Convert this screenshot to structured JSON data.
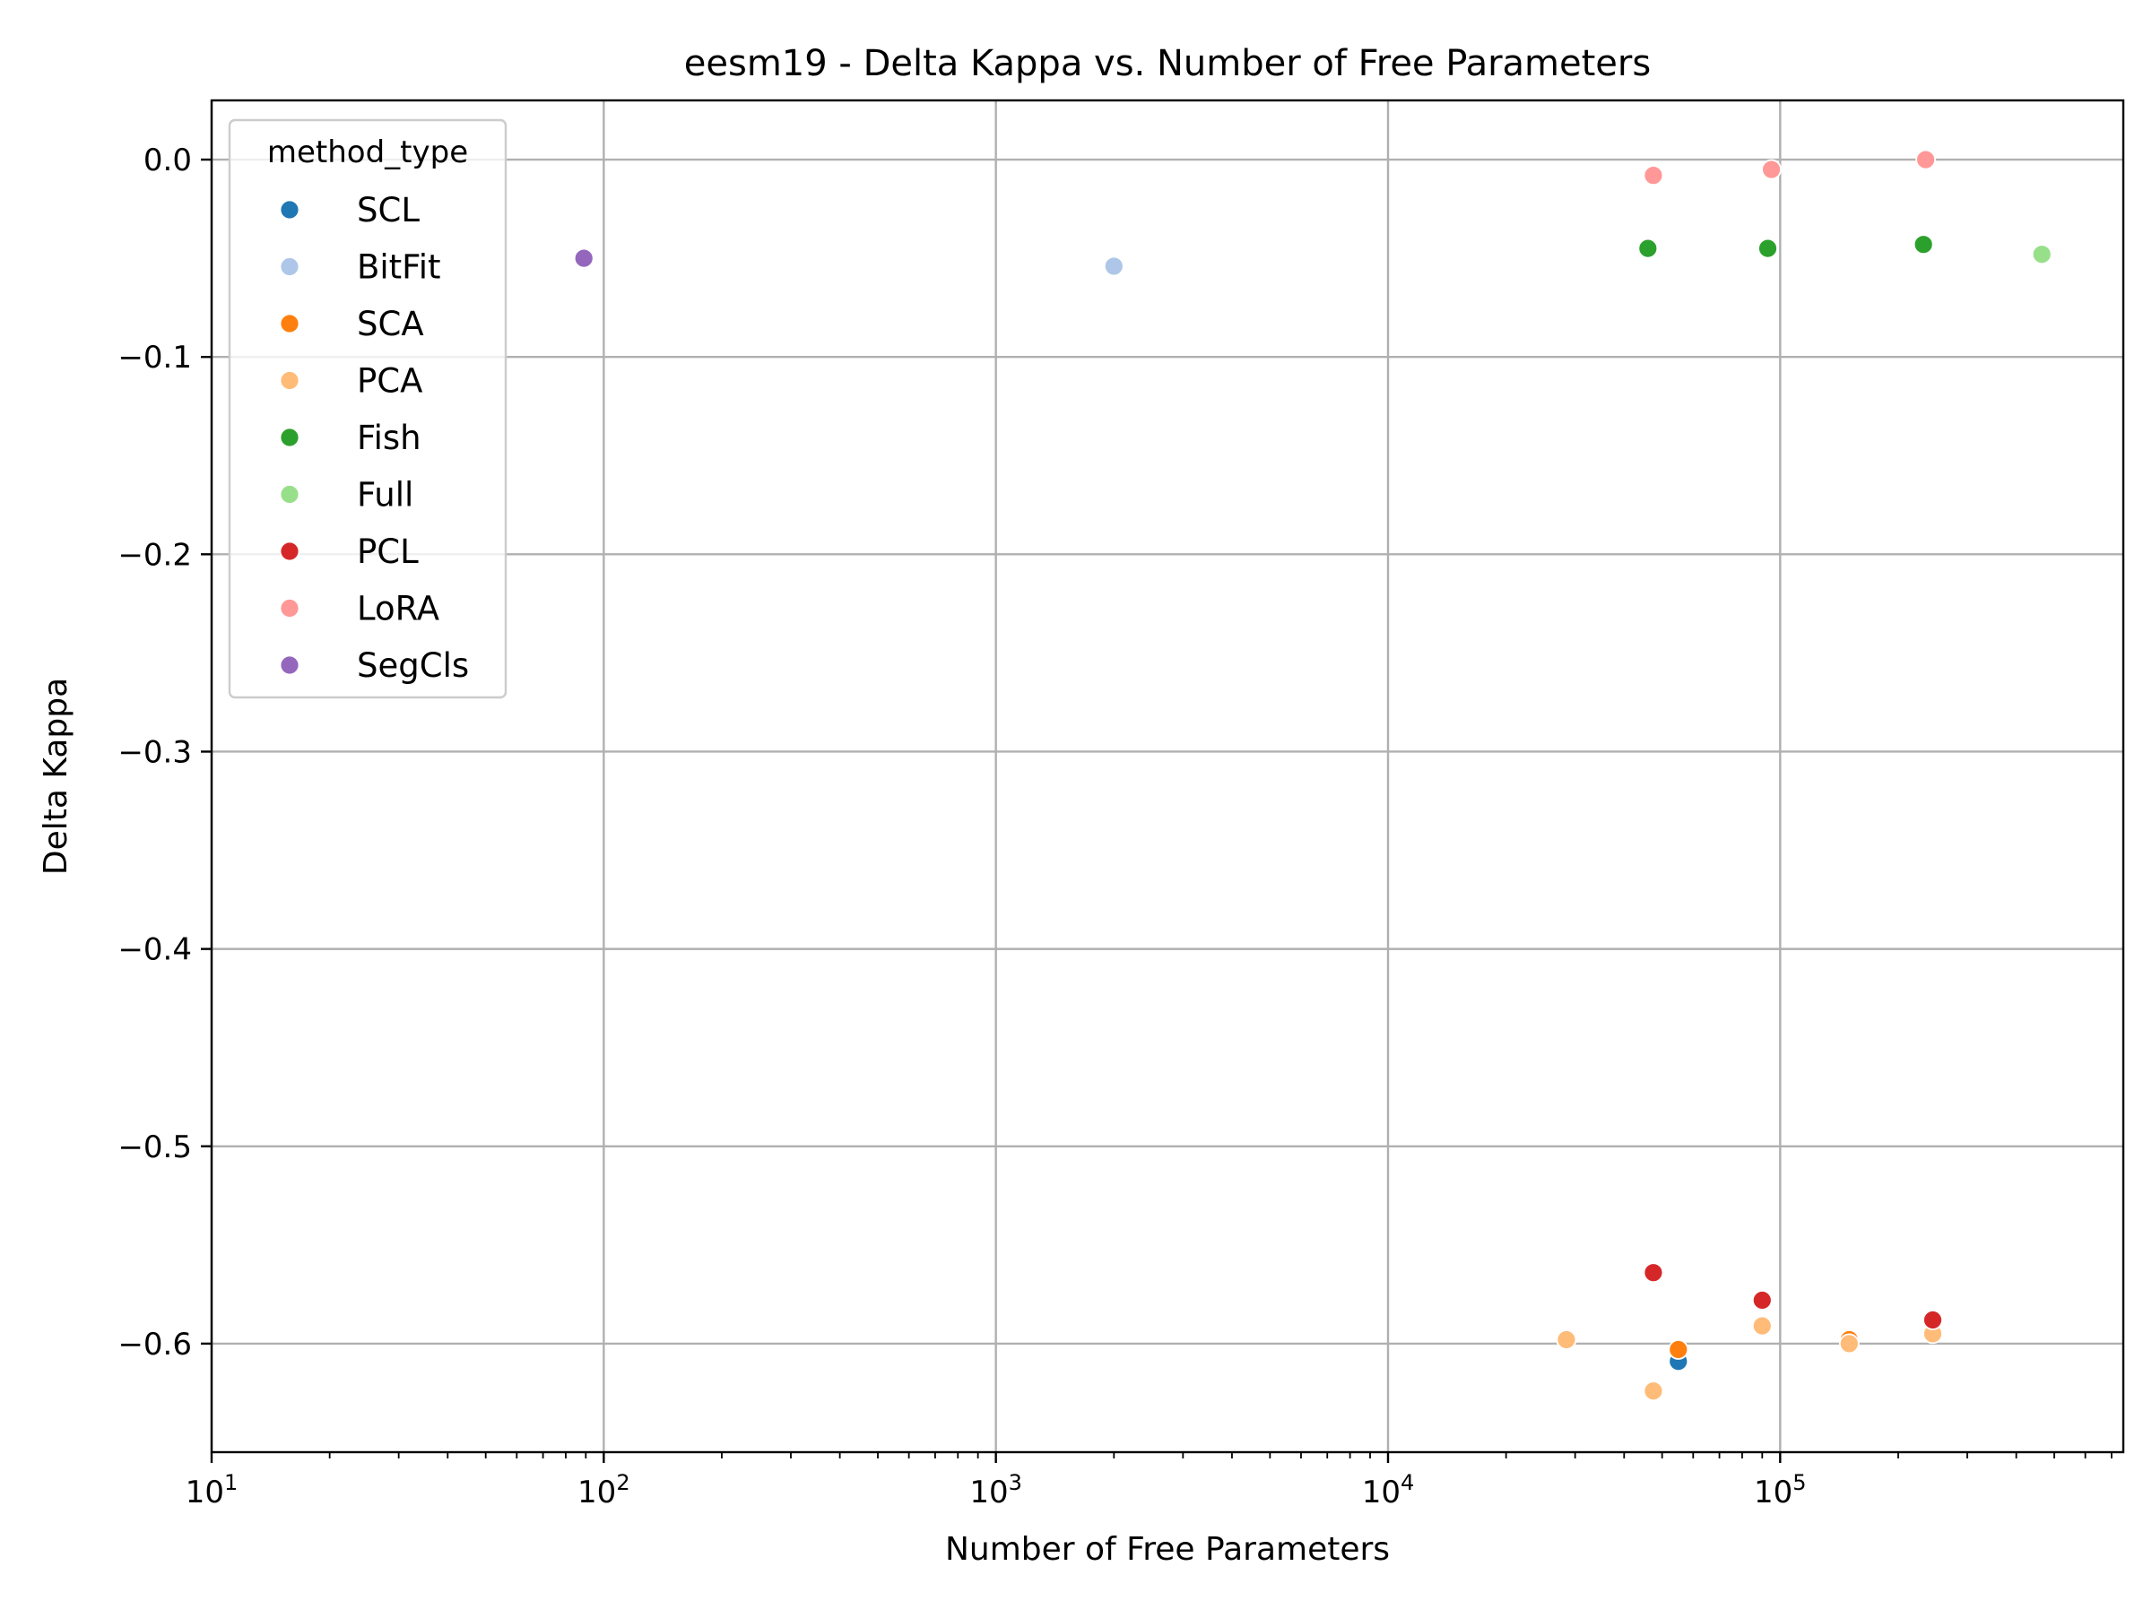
{
  "chart_data": {
    "type": "scatter",
    "title": "eesm19 - Delta Kappa vs. Number of Free Parameters",
    "xlabel": "Number of Free Parameters",
    "ylabel": "Delta Kappa",
    "xscale": "log",
    "xlim": [
      10,
      750000
    ],
    "ylim": [
      -0.655,
      0.03
    ],
    "grid": true,
    "legend": {
      "title": "method_type",
      "placement": "upper-left"
    },
    "x_tick_labels": [
      {
        "value": 10,
        "base": "10",
        "exp": "1"
      },
      {
        "value": 100,
        "base": "10",
        "exp": "2"
      },
      {
        "value": 1000,
        "base": "10",
        "exp": "3"
      },
      {
        "value": 10000,
        "base": "10",
        "exp": "4"
      },
      {
        "value": 100000,
        "base": "10",
        "exp": "5"
      }
    ],
    "y_tick_labels": [
      {
        "value": 0.0,
        "label": "0.0"
      },
      {
        "value": -0.1,
        "label": "−0.1"
      },
      {
        "value": -0.2,
        "label": "−0.2"
      },
      {
        "value": -0.3,
        "label": "−0.3"
      },
      {
        "value": -0.4,
        "label": "−0.4"
      },
      {
        "value": -0.5,
        "label": "−0.5"
      },
      {
        "value": -0.6,
        "label": "−0.6"
      }
    ],
    "series": [
      {
        "name": "SCL",
        "color": "#1f77b4",
        "points": [
          [
            55000,
            -0.609
          ],
          [
            150000,
            -0.6
          ]
        ]
      },
      {
        "name": "BitFit",
        "color": "#aec7e8",
        "points": [
          [
            2000,
            -0.054
          ]
        ]
      },
      {
        "name": "SCA",
        "color": "#ff7f0e",
        "points": [
          [
            28500,
            -0.598
          ],
          [
            55000,
            -0.603
          ],
          [
            150000,
            -0.598
          ]
        ]
      },
      {
        "name": "PCA",
        "color": "#ffbb78",
        "points": [
          [
            28500,
            -0.598
          ],
          [
            47500,
            -0.624
          ],
          [
            90000,
            -0.591
          ],
          [
            150000,
            -0.6
          ],
          [
            245000,
            -0.595
          ]
        ]
      },
      {
        "name": "Fish",
        "color": "#2ca02c",
        "points": [
          [
            46000,
            -0.045
          ],
          [
            93000,
            -0.045
          ],
          [
            232000,
            -0.043
          ]
        ]
      },
      {
        "name": "Full",
        "color": "#98df8a",
        "points": [
          [
            465000,
            -0.048
          ]
        ]
      },
      {
        "name": "PCL",
        "color": "#d62728",
        "points": [
          [
            47500,
            -0.564
          ],
          [
            90000,
            -0.578
          ],
          [
            245000,
            -0.588
          ]
        ]
      },
      {
        "name": "LoRA",
        "color": "#ff9896",
        "points": [
          [
            47500,
            -0.008
          ],
          [
            95000,
            -0.005
          ],
          [
            235000,
            0.0
          ]
        ]
      },
      {
        "name": "SegCls",
        "color": "#9467bd",
        "points": [
          [
            89,
            -0.05
          ]
        ]
      }
    ]
  }
}
